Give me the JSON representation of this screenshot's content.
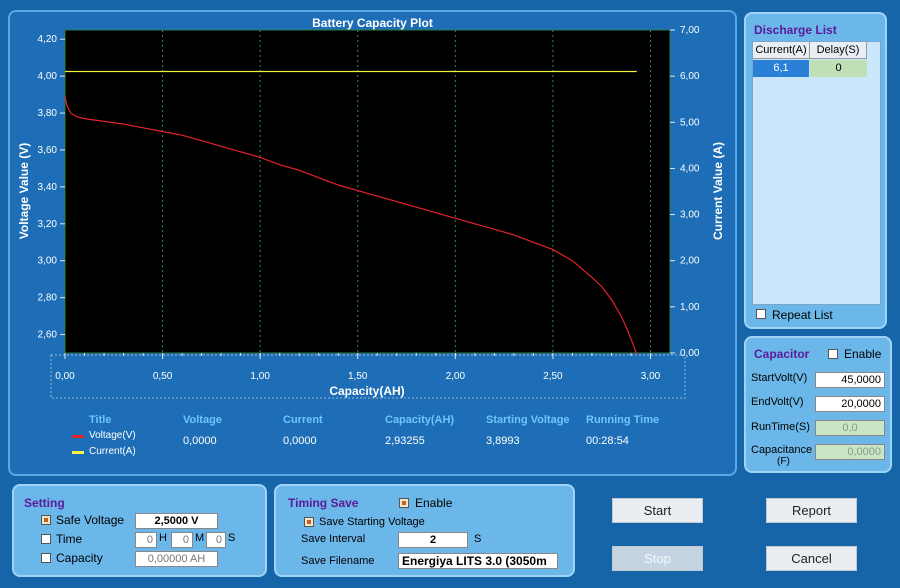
{
  "plot": {
    "title": "Battery Capacity Plot",
    "y_label_left": "Voltage Value (V)",
    "y_label_right": "Current Value (A)",
    "x_label": "Capacity(AH)"
  },
  "legend": {
    "headers": [
      "Title",
      "Voltage",
      "Current",
      "Capacity(AH)",
      "Starting Voltage",
      "Running Time"
    ],
    "series": [
      {
        "name": "Voltage(V)",
        "color": "#e4232a"
      },
      {
        "name": "Current(A)",
        "color": "#f3f342"
      }
    ],
    "values": [
      "0,0000",
      "0,0000",
      "2,93255",
      "3,8993",
      "00:28:54"
    ]
  },
  "chart_data": {
    "type": "line",
    "title": "Battery Capacity Plot",
    "xlabel": "Capacity(AH)",
    "ylabel": "Voltage Value (V)",
    "y2label": "Current Value (A)",
    "xlim": [
      0,
      3.1
    ],
    "ylim": [
      2.5,
      4.25
    ],
    "y2lim": [
      0,
      7.0
    ],
    "x_ticks": [
      "0,00",
      "0,50",
      "1,00",
      "1,50",
      "2,00",
      "2,50",
      "3,00"
    ],
    "y_ticks": [
      "2,60",
      "2,80",
      "3,00",
      "3,20",
      "3,40",
      "3,60",
      "3,80",
      "4,00",
      "4,20"
    ],
    "y2_ticks": [
      "0,00",
      "1,00",
      "2,00",
      "3,00",
      "4,00",
      "5,00",
      "6,00",
      "7,00"
    ],
    "series": [
      {
        "name": "Voltage(V)",
        "axis": "left",
        "color": "#e4232a",
        "x": [
          0.0,
          0.01,
          0.03,
          0.06,
          0.1,
          0.2,
          0.3,
          0.4,
          0.5,
          0.6,
          0.7,
          0.8,
          0.9,
          1.0,
          1.1,
          1.2,
          1.3,
          1.4,
          1.5,
          1.6,
          1.7,
          1.8,
          1.9,
          2.0,
          2.1,
          2.2,
          2.3,
          2.4,
          2.5,
          2.6,
          2.7,
          2.75,
          2.8,
          2.85,
          2.88,
          2.91,
          2.93
        ],
        "y": [
          3.89,
          3.84,
          3.8,
          3.78,
          3.77,
          3.755,
          3.74,
          3.72,
          3.7,
          3.68,
          3.65,
          3.62,
          3.59,
          3.56,
          3.52,
          3.49,
          3.45,
          3.41,
          3.38,
          3.35,
          3.32,
          3.29,
          3.26,
          3.23,
          3.2,
          3.17,
          3.14,
          3.1,
          3.06,
          3.0,
          2.91,
          2.86,
          2.79,
          2.7,
          2.63,
          2.55,
          2.49
        ]
      },
      {
        "name": "Current(A)",
        "axis": "right",
        "color": "#f3f342",
        "x": [
          0.0,
          2.93
        ],
        "y": [
          6.1,
          6.1
        ]
      }
    ]
  },
  "discharge_list": {
    "title": "Discharge List",
    "columns": [
      "Current(A)",
      "Delay(S)"
    ],
    "rows": [
      [
        "6,1",
        "0"
      ]
    ],
    "repeat_label": "Repeat List"
  },
  "capacitor": {
    "title": "Capacitor",
    "enable_label": "Enable",
    "fields": [
      {
        "label": "StartVolt(V)",
        "value": "45,0000"
      },
      {
        "label": "EndVolt(V)",
        "value": "20,0000"
      },
      {
        "label": "RunTime(S)",
        "value": "0,0"
      },
      {
        "label": "Capacitance",
        "sub": "(F)",
        "value": "0,0000"
      }
    ]
  },
  "setting": {
    "title": "Setting",
    "safe_voltage_label": "Safe Voltage",
    "safe_voltage_value": "2,5000 V",
    "time_label": "Time",
    "time_h": "0",
    "h_label": "H",
    "time_m": "0",
    "m_label": "M",
    "time_s": "0",
    "s_label": "S",
    "capacity_label": "Capacity",
    "capacity_value": "0,00000 AH"
  },
  "timing_save": {
    "title": "Timing Save",
    "enable_label": "Enable",
    "save_start_label": "Save Starting Voltage",
    "interval_label": "Save Interval",
    "interval_value": "2",
    "interval_unit": "S",
    "filename_label": "Save Filename",
    "filename_value": "Energiya LITS 3.0 (3050m"
  },
  "buttons": {
    "start": "Start",
    "report": "Report",
    "stop": "Stop",
    "cancel": "Cancel"
  }
}
